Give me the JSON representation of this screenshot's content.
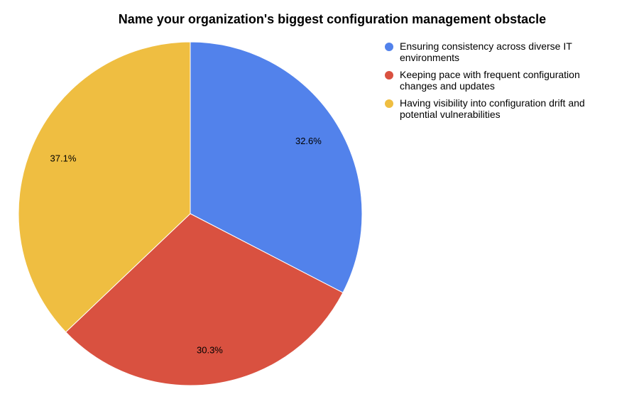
{
  "chart_data": {
    "type": "pie",
    "title": "Name your organization's biggest configuration management obstacle",
    "categories": [
      "Ensuring consistency across diverse IT environments",
      "Keeping pace with frequent configuration changes and updates",
      "Having visibility into configuration drift and potential vulnerabilities"
    ],
    "legend_lines": [
      [
        "Ensuring consistency across diverse IT",
        "environments"
      ],
      [
        "Keeping pace with frequent configuration",
        "changes and updates"
      ],
      [
        "Having visibility into configuration drift and",
        "potential vulnerabilities"
      ]
    ],
    "values": [
      32.6,
      30.3,
      37.1
    ],
    "data_labels": [
      "32.6%",
      "30.3%",
      "37.1%"
    ],
    "colors": [
      "#5282EB",
      "#D95140",
      "#EFBE41"
    ],
    "start_angle": "top",
    "direction": "clockwise",
    "legend_position": "right"
  }
}
